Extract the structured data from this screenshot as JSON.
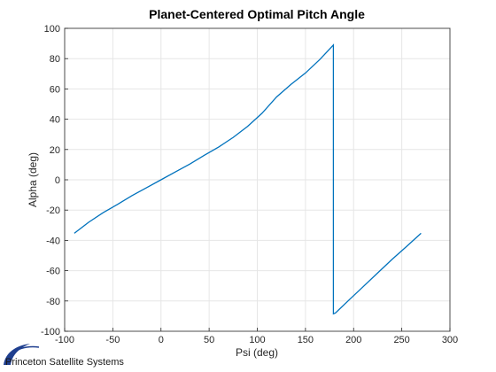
{
  "chart_data": {
    "type": "line",
    "title": "Planet-Centered Optimal Pitch Angle",
    "xlabel": "Psi (deg)",
    "ylabel": "Alpha (deg)",
    "xlim": [
      -100,
      300
    ],
    "ylim": [
      -100,
      100
    ],
    "xticks": [
      -100,
      -50,
      0,
      50,
      100,
      150,
      200,
      250,
      300
    ],
    "yticks": [
      -100,
      -80,
      -60,
      -40,
      -20,
      0,
      20,
      40,
      60,
      80,
      100
    ],
    "grid": true,
    "series": [
      {
        "color": "#0072bd",
        "x": [
          -90,
          -75,
          -60,
          -45,
          -30,
          -15,
          0,
          15,
          30,
          45,
          60,
          75,
          90,
          105,
          120,
          135,
          150,
          165,
          179,
          179.01,
          181,
          195,
          210,
          225,
          240,
          255,
          270
        ],
        "y": [
          -35.3,
          -28.0,
          -21.7,
          -16.2,
          -10.4,
          -5.2,
          0,
          5.2,
          10.4,
          16.2,
          21.7,
          28.0,
          35.3,
          44.0,
          54.7,
          63.0,
          70.5,
          79.5,
          89.0,
          -88.5,
          -88.0,
          -79.5,
          -70.5,
          -61.5,
          -52.5,
          -44.0,
          -35.3
        ]
      }
    ]
  },
  "logo": {
    "text": "Princeton Satellite Systems"
  }
}
